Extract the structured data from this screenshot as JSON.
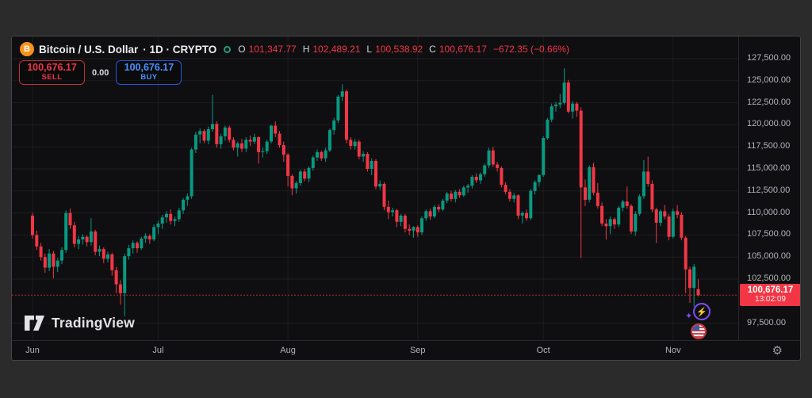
{
  "window": {
    "bg_outer": "#2b2b2b",
    "bg_panel": "#0f0f11"
  },
  "header": {
    "instrument_icon_letter": "B",
    "symbol": "Bitcoin / U.S. Dollar",
    "meta": "· 1D · CRYPTO",
    "ohlc": {
      "o_label": "O",
      "o": "101,347.77",
      "h_label": "H",
      "h": "102,489.21",
      "l_label": "L",
      "l": "100,538.92",
      "c_label": "C",
      "c": "100,676.17",
      "change": "−672.35 (−0.66%)"
    }
  },
  "trade_panel": {
    "sell_price": "100,676.17",
    "sell_label": "SELL",
    "spread": "0.00",
    "buy_price": "100,676.17",
    "buy_label": "BUY"
  },
  "watermark": {
    "text": "TradingView"
  },
  "price_axis": {
    "labels": [
      "127,500.00",
      "125,000.00",
      "122,500.00",
      "120,000.00",
      "117,500.00",
      "115,000.00",
      "112,500.00",
      "110,000.00",
      "107,500.00",
      "105,000.00",
      "102,500.00",
      "97,500.00"
    ],
    "last_price_badge": {
      "price": "100,676.17",
      "time": "13:02:09"
    }
  },
  "icons": {
    "gear": "⚙",
    "lightning": "⚡",
    "sparkle": "✦"
  },
  "chart_data": {
    "type": "candlestick",
    "title": "Bitcoin / U.S. Dollar · 1D · CRYPTO",
    "ohlc_display": {
      "open": 101347.77,
      "high": 102489.21,
      "low": 100538.92,
      "close": 100676.17,
      "change": -672.35,
      "change_pct": -0.66
    },
    "last_price": 100676.17,
    "last_time": "13:02:09",
    "ylim": [
      95580,
      130020
    ],
    "y_gridlines": [
      127500,
      125000,
      122500,
      120000,
      117500,
      115000,
      112500,
      110000,
      107500,
      105000,
      102500,
      97500
    ],
    "month_starts": [
      {
        "label": "Jun",
        "index": 0
      },
      {
        "label": "Jul",
        "index": 30
      },
      {
        "label": "Aug",
        "index": 61
      },
      {
        "label": "Sep",
        "index": 92
      },
      {
        "label": "Oct",
        "index": 122
      },
      {
        "label": "Nov",
        "index": 153
      }
    ],
    "colors": {
      "up": "#089981",
      "down": "#f23645"
    },
    "layout": {
      "top_price": 130020,
      "bottom_price": 95580,
      "x0": 26,
      "dx": 5.28
    },
    "candles": [
      [
        109700,
        110000,
        107100,
        107500
      ],
      [
        107500,
        108000,
        105800,
        106200
      ],
      [
        106200,
        106600,
        104600,
        105000
      ],
      [
        105000,
        105400,
        103200,
        103800
      ],
      [
        103800,
        105900,
        103400,
        105400
      ],
      [
        105400,
        105700,
        102600,
        103900
      ],
      [
        103900,
        104900,
        103300,
        104600
      ],
      [
        104600,
        106100,
        104200,
        105800
      ],
      [
        105800,
        110300,
        105500,
        110000
      ],
      [
        110000,
        110500,
        108200,
        108600
      ],
      [
        108600,
        109000,
        106100,
        106500
      ],
      [
        106500,
        107400,
        105900,
        107000
      ],
      [
        107000,
        107600,
        106400,
        107300
      ],
      [
        107300,
        107500,
        106200,
        106700
      ],
      [
        106700,
        109400,
        106300,
        107900
      ],
      [
        107900,
        108100,
        105200,
        105600
      ],
      [
        105600,
        106300,
        105100,
        105900
      ],
      [
        105900,
        106100,
        104300,
        104800
      ],
      [
        104800,
        105600,
        104400,
        105300
      ],
      [
        105300,
        105500,
        102900,
        103500
      ],
      [
        103500,
        103900,
        100900,
        101900
      ],
      [
        101900,
        102400,
        99600,
        100900
      ],
      [
        100900,
        105400,
        98300,
        105100
      ],
      [
        105100,
        106400,
        104700,
        106000
      ],
      [
        106000,
        106900,
        105400,
        106600
      ],
      [
        106600,
        106800,
        105500,
        106000
      ],
      [
        106000,
        107300,
        105800,
        107100
      ],
      [
        107100,
        107700,
        106600,
        107400
      ],
      [
        107400,
        107600,
        106500,
        107000
      ],
      [
        107000,
        108700,
        106800,
        108400
      ],
      [
        108400,
        109100,
        107600,
        108800
      ],
      [
        108800,
        109800,
        108200,
        109500
      ],
      [
        109500,
        110200,
        108900,
        109900
      ],
      [
        109900,
        110400,
        108700,
        109100
      ],
      [
        109100,
        109600,
        108500,
        109300
      ],
      [
        109300,
        110600,
        109000,
        110300
      ],
      [
        110300,
        111700,
        109900,
        111500
      ],
      [
        111500,
        112200,
        110800,
        111900
      ],
      [
        111900,
        117400,
        111600,
        117200
      ],
      [
        117200,
        119200,
        116800,
        118900
      ],
      [
        118900,
        119600,
        117900,
        119300
      ],
      [
        119300,
        119500,
        117900,
        118200
      ],
      [
        118200,
        119800,
        117800,
        119500
      ],
      [
        119500,
        123400,
        119200,
        120100
      ],
      [
        120100,
        120400,
        117400,
        117800
      ],
      [
        117800,
        119000,
        117300,
        118700
      ],
      [
        118700,
        119900,
        118200,
        119700
      ],
      [
        119700,
        119900,
        118000,
        118300
      ],
      [
        118300,
        118600,
        117100,
        117400
      ],
      [
        117400,
        118100,
        116400,
        117900
      ],
      [
        117900,
        118400,
        116900,
        117300
      ],
      [
        117300,
        118600,
        116900,
        118300
      ],
      [
        118300,
        118800,
        117600,
        118100
      ],
      [
        118100,
        119000,
        117800,
        118600
      ],
      [
        118600,
        118700,
        115600,
        116900
      ],
      [
        116900,
        117400,
        116300,
        117000
      ],
      [
        117000,
        118300,
        116700,
        118100
      ],
      [
        118100,
        120000,
        117900,
        119900
      ],
      [
        119900,
        120400,
        118600,
        119000
      ],
      [
        119000,
        119300,
        117400,
        117700
      ],
      [
        117700,
        118100,
        115800,
        116600
      ],
      [
        116600,
        116800,
        113000,
        114200
      ],
      [
        114200,
        114400,
        112000,
        112800
      ],
      [
        112800,
        113600,
        112200,
        113400
      ],
      [
        113400,
        114900,
        113100,
        114700
      ],
      [
        114700,
        115000,
        113600,
        113900
      ],
      [
        113900,
        115300,
        113500,
        115100
      ],
      [
        115100,
        116500,
        114800,
        116300
      ],
      [
        116300,
        117200,
        115900,
        116900
      ],
      [
        116900,
        117100,
        115900,
        116200
      ],
      [
        116200,
        117400,
        115800,
        117100
      ],
      [
        117100,
        119600,
        116900,
        119400
      ],
      [
        119400,
        120800,
        118900,
        120500
      ],
      [
        120500,
        123400,
        120200,
        123200
      ],
      [
        123200,
        124600,
        122700,
        123800
      ],
      [
        123800,
        124000,
        117900,
        118300
      ],
      [
        118300,
        118600,
        117200,
        117600
      ],
      [
        117600,
        118400,
        117200,
        118100
      ],
      [
        118100,
        118300,
        116100,
        116400
      ],
      [
        116400,
        117000,
        115800,
        116700
      ],
      [
        116700,
        116900,
        114700,
        115000
      ],
      [
        115000,
        116200,
        114300,
        115900
      ],
      [
        115900,
        116100,
        112700,
        113000
      ],
      [
        113000,
        113700,
        112600,
        113300
      ],
      [
        113300,
        113500,
        110300,
        110700
      ],
      [
        110700,
        111400,
        109300,
        110100
      ],
      [
        110100,
        110600,
        109600,
        110300
      ],
      [
        110300,
        110500,
        108400,
        109000
      ],
      [
        109000,
        109900,
        108500,
        109700
      ],
      [
        109700,
        109900,
        107800,
        108200
      ],
      [
        108200,
        108700,
        107500,
        108000
      ],
      [
        108000,
        108500,
        107200,
        108400
      ],
      [
        108400,
        108600,
        107300,
        107800
      ],
      [
        107800,
        109600,
        107500,
        109400
      ],
      [
        109400,
        110400,
        109100,
        110200
      ],
      [
        110200,
        110500,
        109200,
        109600
      ],
      [
        109600,
        110900,
        109400,
        110700
      ],
      [
        110700,
        111000,
        110100,
        110400
      ],
      [
        110400,
        111600,
        110200,
        111400
      ],
      [
        111400,
        112400,
        111100,
        112200
      ],
      [
        112200,
        112500,
        111300,
        111600
      ],
      [
        111600,
        112600,
        111200,
        112400
      ],
      [
        112400,
        112700,
        111700,
        112000
      ],
      [
        112000,
        113100,
        111800,
        112900
      ],
      [
        112900,
        113300,
        112300,
        113100
      ],
      [
        113100,
        114300,
        112800,
        114100
      ],
      [
        114100,
        114500,
        113400,
        113700
      ],
      [
        113700,
        114600,
        113300,
        114400
      ],
      [
        114400,
        115600,
        114100,
        115400
      ],
      [
        115400,
        117400,
        115100,
        117100
      ],
      [
        117100,
        117500,
        115200,
        115500
      ],
      [
        115500,
        115800,
        114700,
        115100
      ],
      [
        115100,
        115300,
        112900,
        113200
      ],
      [
        113200,
        113500,
        112100,
        112400
      ],
      [
        112400,
        112700,
        111300,
        111600
      ],
      [
        111600,
        112300,
        111200,
        112000
      ],
      [
        112000,
        112100,
        109300,
        109700
      ],
      [
        109700,
        110200,
        108800,
        110000
      ],
      [
        110000,
        110400,
        109100,
        109400
      ],
      [
        109400,
        112700,
        109200,
        112500
      ],
      [
        112500,
        113700,
        112100,
        113500
      ],
      [
        113500,
        114400,
        113000,
        114300
      ],
      [
        114300,
        118700,
        114100,
        118500
      ],
      [
        118500,
        120800,
        118300,
        120600
      ],
      [
        120600,
        122400,
        120300,
        122100
      ],
      [
        122100,
        122600,
        121500,
        122300
      ],
      [
        122300,
        123500,
        121900,
        122500
      ],
      [
        122500,
        126400,
        122300,
        124800
      ],
      [
        124800,
        125100,
        121300,
        121500
      ],
      [
        121500,
        122700,
        120700,
        122400
      ],
      [
        122400,
        122600,
        120900,
        121600
      ],
      [
        121600,
        122000,
        104900,
        112900
      ],
      [
        112900,
        113800,
        110800,
        111500
      ],
      [
        111500,
        115400,
        111200,
        115200
      ],
      [
        115200,
        115700,
        112000,
        112300
      ],
      [
        112300,
        113400,
        110500,
        110800
      ],
      [
        110800,
        111200,
        108500,
        108800
      ],
      [
        108800,
        109300,
        107000,
        108500
      ],
      [
        108500,
        109600,
        107600,
        109300
      ],
      [
        109300,
        109500,
        108200,
        108700
      ],
      [
        108700,
        110800,
        108400,
        110600
      ],
      [
        110600,
        111500,
        110200,
        111300
      ],
      [
        111300,
        113000,
        110500,
        110800
      ],
      [
        110800,
        111000,
        107600,
        107900
      ],
      [
        107900,
        110200,
        107400,
        109900
      ],
      [
        109900,
        112100,
        109700,
        111900
      ],
      [
        111900,
        116000,
        111600,
        114700
      ],
      [
        114700,
        116400,
        113000,
        113300
      ],
      [
        113300,
        113700,
        110100,
        110400
      ],
      [
        110400,
        110600,
        106600,
        108900
      ],
      [
        108900,
        110400,
        108500,
        110200
      ],
      [
        110200,
        110900,
        109300,
        109600
      ],
      [
        109600,
        109900,
        106900,
        107300
      ],
      [
        107300,
        110500,
        107100,
        110200
      ],
      [
        110200,
        110900,
        109400,
        109800
      ],
      [
        109800,
        110100,
        106900,
        107200
      ],
      [
        107200,
        107400,
        100900,
        103600
      ],
      [
        103600,
        103900,
        99800,
        101500
      ],
      [
        101500,
        104200,
        99400,
        103900
      ],
      [
        101347.77,
        102489.21,
        100538.92,
        100676.17
      ]
    ]
  }
}
